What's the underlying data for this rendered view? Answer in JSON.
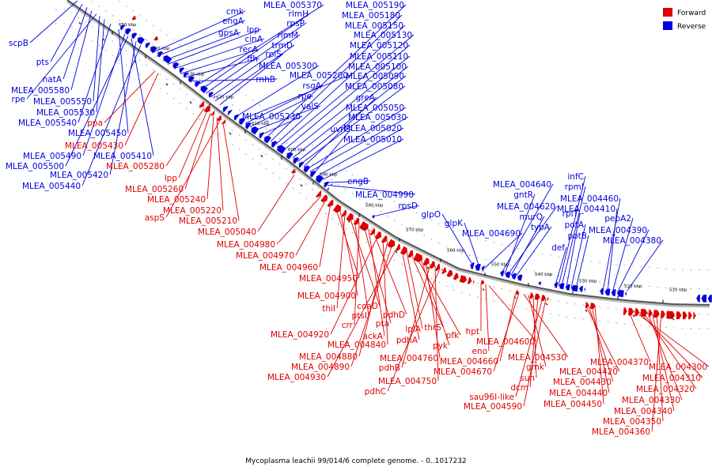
{
  "legend": [
    {
      "label": "Forward",
      "color": "#e00000"
    },
    {
      "label": "Reverse",
      "color": "#0000e0"
    }
  ],
  "caption": "Mycoplasma leachii 99/014/6 complete genome. - 0..1017232",
  "kbp_ticks": [
    "650 kbp",
    "640 kbp",
    "630 kbp",
    "620 kbp",
    "610 kbp",
    "600 kbp",
    "590 kbp",
    "580 kbp",
    "570 kbp",
    "560 kbp",
    "550 kbp",
    "540 kbp",
    "530 kbp",
    "520 kbp",
    "510 kbp"
  ],
  "reverse_genes": [
    "scpB",
    "pts",
    "natA",
    "MLEA_005580",
    "rpe",
    "MLEA_005550",
    "MLEA_005530",
    "MLEA_005540",
    "MLEA_005450",
    "MLEA_005490",
    "MLEA_005410",
    "MLEA_005500",
    "MLEA_005420",
    "MLEA_005440",
    "cmk",
    "engA",
    "gpsA",
    "lpp",
    "cinA",
    "recA",
    "ffh",
    "rnhB",
    "MLEA_005370",
    "rlmH",
    "rpsP",
    "rimM",
    "trmD",
    "rplS",
    "MLEA_005300",
    "MLEA_005200",
    "rsgA",
    "rpe",
    "valS",
    "MLEA_005230",
    "MLEA_005190",
    "MLEA_005180",
    "MLEA_005150",
    "MLEA_005130",
    "MLEA_005120",
    "MLEA_005110",
    "MLEA_005100",
    "MLEA_005090",
    "MLEA_005080",
    "greA",
    "MLEA_005050",
    "MLEA_005030",
    "uvrC",
    "MLEA_005020",
    "MLEA_005010",
    "engB",
    "MLEA_004990",
    "rpsD",
    "glpO",
    "glpK",
    "MLEA_004690",
    "MLEA_004640",
    "gntR",
    "MLEA_004620",
    "murQ",
    "typA",
    "def",
    "infC",
    "rpmI",
    "rplT",
    "potA",
    "potB",
    "MLEA_004460",
    "MLEA_004410",
    "pepA2",
    "MLEA_004390",
    "MLEA_004380"
  ],
  "forward_genes": [
    "ppa",
    "MLEA_005430",
    "MLEA_005280",
    "lpp",
    "MLEA_005260",
    "MLEA_005240",
    "MLEA_005220",
    "aspS",
    "MLEA_005210",
    "MLEA_005040",
    "MLEA_004980",
    "MLEA_004970",
    "MLEA_004960",
    "MLEA_004950",
    "MLEA_004900",
    "thiI",
    "coaD",
    "ptsI",
    "crr",
    "pta",
    "ackA",
    "pdhD",
    "MLEA_004920",
    "MLEA_004840",
    "MLEA_004880",
    "MLEA_004890",
    "MLEA_004930",
    "pdhA",
    "lplA",
    "thrS",
    "pfk",
    "pyk",
    "MLEA_004760",
    "pdhB",
    "MLEA_004750",
    "pdhC",
    "hpt",
    "eno",
    "MLEA_004600",
    "MLEA_004660",
    "MLEA_004670",
    "MLEA_004530",
    "gmk",
    "sun",
    "dcm",
    "sau96I-like",
    "MLEA_004590",
    "MLEA_004420",
    "MLEA_004430",
    "MLEA_004440",
    "MLEA_004450",
    "MLEA_004370",
    "MLEA_004300",
    "MLEA_004310",
    "MLEA_004320",
    "MLEA_004330",
    "MLEA_004340",
    "MLEA_004350",
    "MLEA_004360"
  ]
}
